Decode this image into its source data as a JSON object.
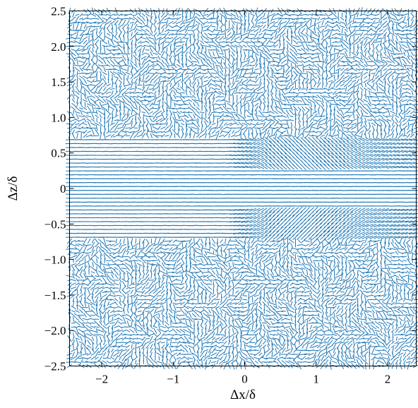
{
  "chart_data": {
    "type": "quiver",
    "xlabel": "Δx/δ",
    "ylabel": "Δz/δ",
    "xlim": [
      -2.45,
      2.4
    ],
    "ylim": [
      -2.5,
      2.5
    ],
    "x_ticks": [
      -2,
      -1,
      0,
      1,
      2
    ],
    "x_tick_labels": [
      "−2",
      "−1",
      "0",
      "1",
      "2"
    ],
    "y_ticks": [
      -2.5,
      -2.0,
      -1.5,
      -1.0,
      -0.5,
      0,
      0.5,
      1.0,
      1.5,
      2.0,
      2.5
    ],
    "y_tick_labels": [
      "−2.5",
      "−2.0",
      "−1.5",
      "−1.0",
      "−0.5",
      "0",
      "0.5",
      "1.0",
      "1.5",
      "2.0",
      "2.5"
    ],
    "field": {
      "x_range": [
        -2.45,
        2.4
      ],
      "z_range": [
        -2.5,
        2.5
      ],
      "nx": 90,
      "nz": 92,
      "structure": "vectors nearly aligned with +x for |Δz| < ~0.7; chevron pattern pointing toward +x for Δx > 0 near |Δz| ~0.3–0.6; random turbulent orientations for |Δz| > ~0.8"
    },
    "series_color": "#1f77b4",
    "grid": false,
    "legend": "none"
  }
}
